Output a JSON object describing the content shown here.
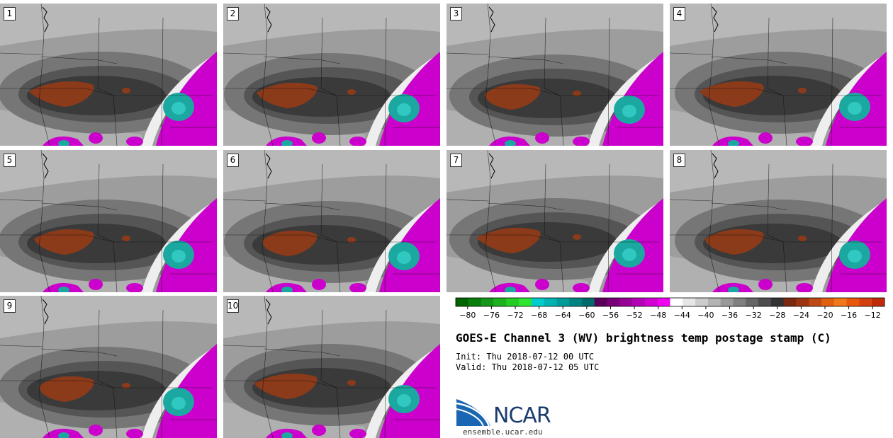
{
  "panels": [
    {
      "label": "1"
    },
    {
      "label": "2"
    },
    {
      "label": "3"
    },
    {
      "label": "4"
    },
    {
      "label": "5"
    },
    {
      "label": "6"
    },
    {
      "label": "7"
    },
    {
      "label": "8"
    },
    {
      "label": "9"
    },
    {
      "label": "10"
    }
  ],
  "chart_data": {
    "type": "heatmap",
    "title": "GOES-E Channel 3 (WV) brightness temp postage stamp (C)",
    "init": "Init: Thu 2018-07-12 00 UTC",
    "valid": "Valid: Thu 2018-07-12 05 UTC",
    "colorbar": {
      "ticks": [
        -80,
        -76,
        -72,
        -68,
        -64,
        -60,
        -56,
        -52,
        -48,
        -44,
        -40,
        -36,
        -32,
        -28,
        -24,
        -20,
        -16,
        -12
      ],
      "tick_labels": [
        "−80",
        "−76",
        "−72",
        "−68",
        "−64",
        "−60",
        "−56",
        "−52",
        "−48",
        "−44",
        "−40",
        "−36",
        "−32",
        "−28",
        "−24",
        "−20",
        "−16",
        "−12"
      ],
      "range": [
        -82,
        -10
      ],
      "colors": [
        "#006400",
        "#0a7d0a",
        "#13961a",
        "#1cb21c",
        "#24cc24",
        "#2ee52e",
        "#00cccc",
        "#00b3b3",
        "#009b9b",
        "#008383",
        "#006b6b",
        "#5a005a",
        "#780078",
        "#960096",
        "#b400b4",
        "#d200d2",
        "#f000f0",
        "#ffffff",
        "#e6e6e6",
        "#cccccc",
        "#b3b3b3",
        "#999999",
        "#808080",
        "#666666",
        "#4d4d4d",
        "#333333",
        "#7a2a10",
        "#9c3512",
        "#bd4a14",
        "#e06010",
        "#f07818",
        "#e8560a",
        "#d24010",
        "#c02a0a"
      ]
    },
    "legend_location": "bottom-right"
  },
  "logo": {
    "name": "NCAR",
    "url": "ensemble.ucar.edu"
  },
  "colors": {
    "background": "#ffffff",
    "map_gray_light": "#b4b4b4",
    "map_gray_dark": "#3a3a3a",
    "cold_core": "#8b3a1a",
    "convection_magenta": "#cc00cc",
    "convection_cyan": "#1aa8a0"
  }
}
